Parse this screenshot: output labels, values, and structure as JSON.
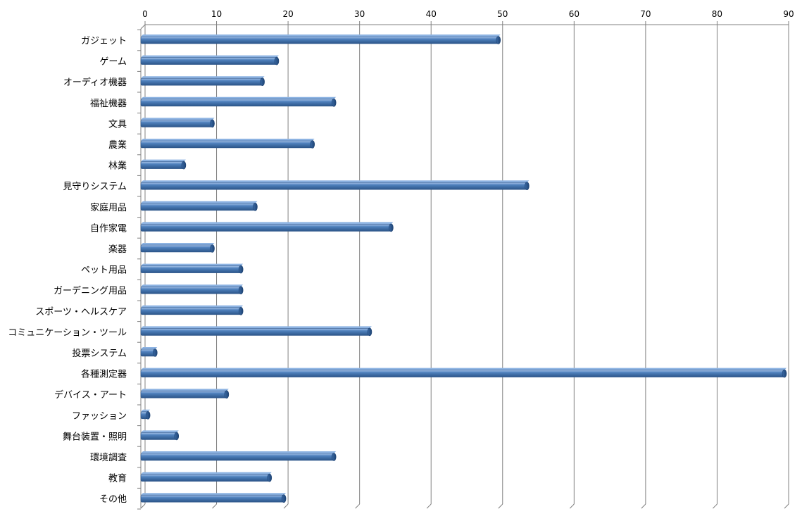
{
  "chart_data": {
    "type": "bar",
    "orientation": "horizontal",
    "title": "",
    "xlabel": "",
    "ylabel": "",
    "xlim": [
      0,
      90
    ],
    "x_ticks": [
      0,
      10,
      20,
      30,
      40,
      50,
      60,
      70,
      80,
      90
    ],
    "x_tick_labels": [
      "0",
      "10",
      "20",
      "30",
      "40",
      "50",
      "60",
      "70",
      "80",
      "90"
    ],
    "x_axis_position": "top",
    "grid": true,
    "legend": "none",
    "bar_color": "#4f81bd",
    "categories": [
      "ガジェット",
      "ゲーム",
      "オーディオ機器",
      "福祉機器",
      "文具",
      "農業",
      "林業",
      "見守りシステム",
      "家庭用品",
      "自作家電",
      "楽器",
      "ペット用品",
      "ガーデニング用品",
      "スポーツ・ヘルスケア",
      "コミュニケーション・ツール",
      "投票システム",
      "各種測定器",
      "デバイス・アート",
      "ファッション",
      "舞台装置・照明",
      "環境調査",
      "教育",
      "その他"
    ],
    "values": [
      50,
      19,
      17,
      27,
      10,
      24,
      6,
      54,
      16,
      35,
      10,
      14,
      14,
      14,
      32,
      2,
      90,
      12,
      1,
      5,
      27,
      18,
      20
    ]
  }
}
